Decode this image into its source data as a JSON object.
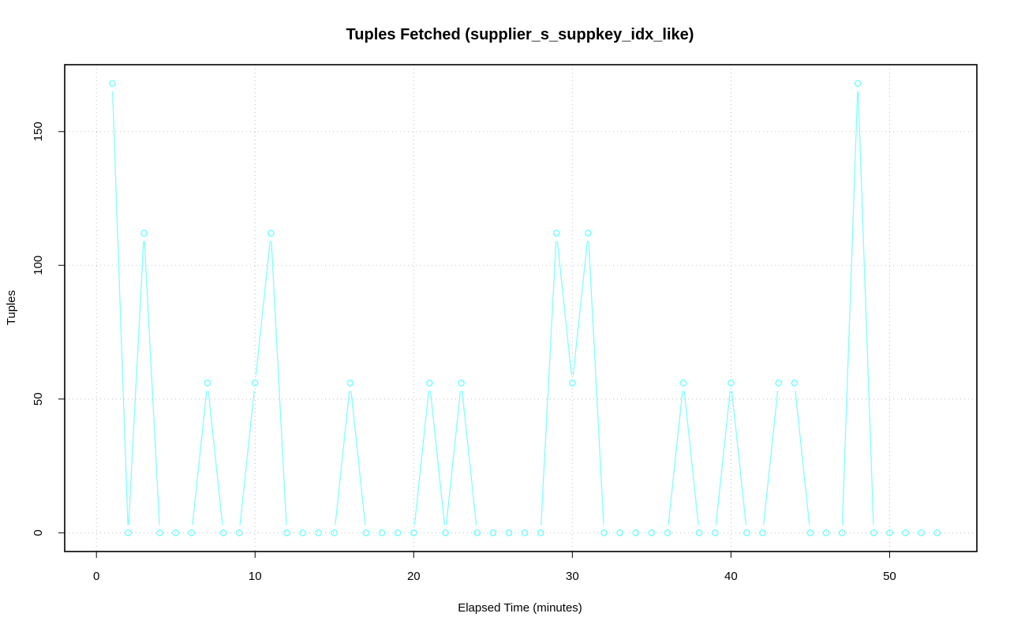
{
  "chart_data": {
    "type": "line",
    "title": "Tuples Fetched (supplier_s_suppkey_idx_like)",
    "xlabel": "Elapsed Time (minutes)",
    "ylabel": "Tuples",
    "xlim": [
      -2,
      55.5
    ],
    "ylim": [
      -7,
      175
    ],
    "x_ticks": [
      0,
      10,
      20,
      30,
      40,
      50
    ],
    "x_tick_labels": [
      "0",
      "10",
      "20",
      "30",
      "40",
      "50"
    ],
    "y_ticks": [
      0,
      50,
      100,
      150
    ],
    "y_tick_labels": [
      "0",
      "50",
      "100",
      "150"
    ],
    "grid": true,
    "series": [
      {
        "color": "#7fffff",
        "x": [
          1,
          2,
          3,
          4,
          5,
          6,
          7,
          8,
          9,
          10,
          11,
          12,
          13,
          14,
          15,
          16,
          17,
          18,
          19,
          20,
          21,
          22,
          23,
          24,
          25,
          26,
          27,
          28,
          29,
          30,
          31,
          32,
          33,
          34,
          35,
          36,
          37,
          38,
          39,
          40,
          41,
          42,
          43,
          44,
          45,
          46,
          47,
          48,
          49,
          50,
          51,
          52,
          53
        ],
        "values": [
          168,
          0,
          112,
          0,
          0,
          0,
          56,
          0,
          0,
          56,
          112,
          0,
          0,
          0,
          0,
          56,
          0,
          0,
          0,
          0,
          56,
          0,
          56,
          0,
          0,
          0,
          0,
          0,
          112,
          56,
          112,
          0,
          0,
          0,
          0,
          0,
          56,
          0,
          0,
          56,
          0,
          0,
          56,
          56,
          0,
          0,
          0,
          168,
          0,
          0,
          0,
          0,
          0
        ]
      }
    ]
  }
}
